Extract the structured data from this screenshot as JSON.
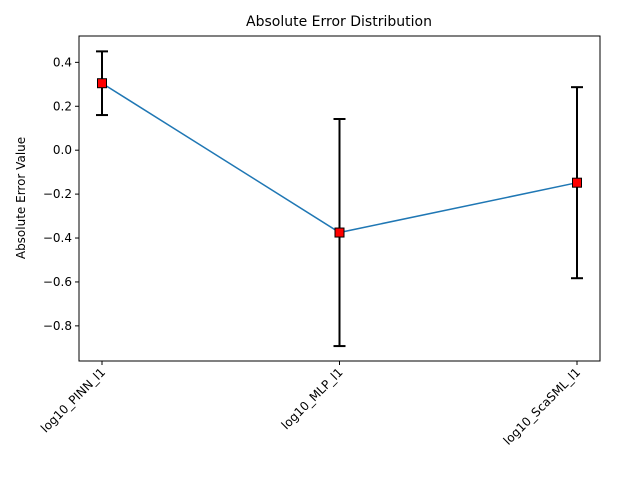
{
  "chart_data": {
    "type": "line",
    "title": "Absolute Error Distribution",
    "xlabel": "",
    "ylabel": "Absolute Error Value",
    "categories": [
      "log10_PINN_l1",
      "log10_MLP_l1",
      "log10_ScaSML_l1"
    ],
    "series": [
      {
        "values": [
          0.305,
          -0.375,
          -0.148
        ],
        "error_low": [
          0.16,
          -0.892,
          -0.583
        ],
        "error_high": [
          0.45,
          0.142,
          0.287
        ]
      }
    ],
    "ylim": [
      -0.96,
      0.52
    ],
    "yticks": [
      0.4,
      0.2,
      0.0,
      -0.2,
      -0.4,
      -0.6,
      -0.8
    ],
    "ytick_labels": [
      "0.4",
      "0.2",
      "0.0",
      "−0.2",
      "−0.4",
      "−0.6",
      "−0.8"
    ],
    "line_color": "#1f77b4",
    "marker_color": "#ff0000",
    "errorbar_color": "#000000",
    "grid": false,
    "legend": "none"
  }
}
